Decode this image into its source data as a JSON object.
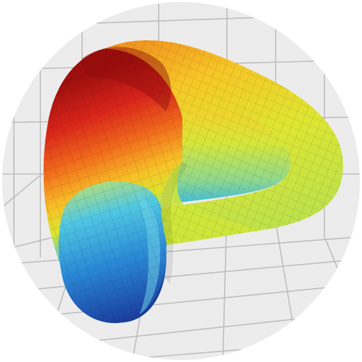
{
  "image": {
    "subject": "",
    "colors": {
      "background": "#e9e9e9",
      "grid": "#b9b9b9",
      "surface_high": "#b51d10",
      "surface_warm": "#f39a1c",
      "surface_mid": "#dfe630",
      "surface_cool": "#27b6e4",
      "surface_low": "#173fa6",
      "mesh_line": "#000000"
    }
  }
}
